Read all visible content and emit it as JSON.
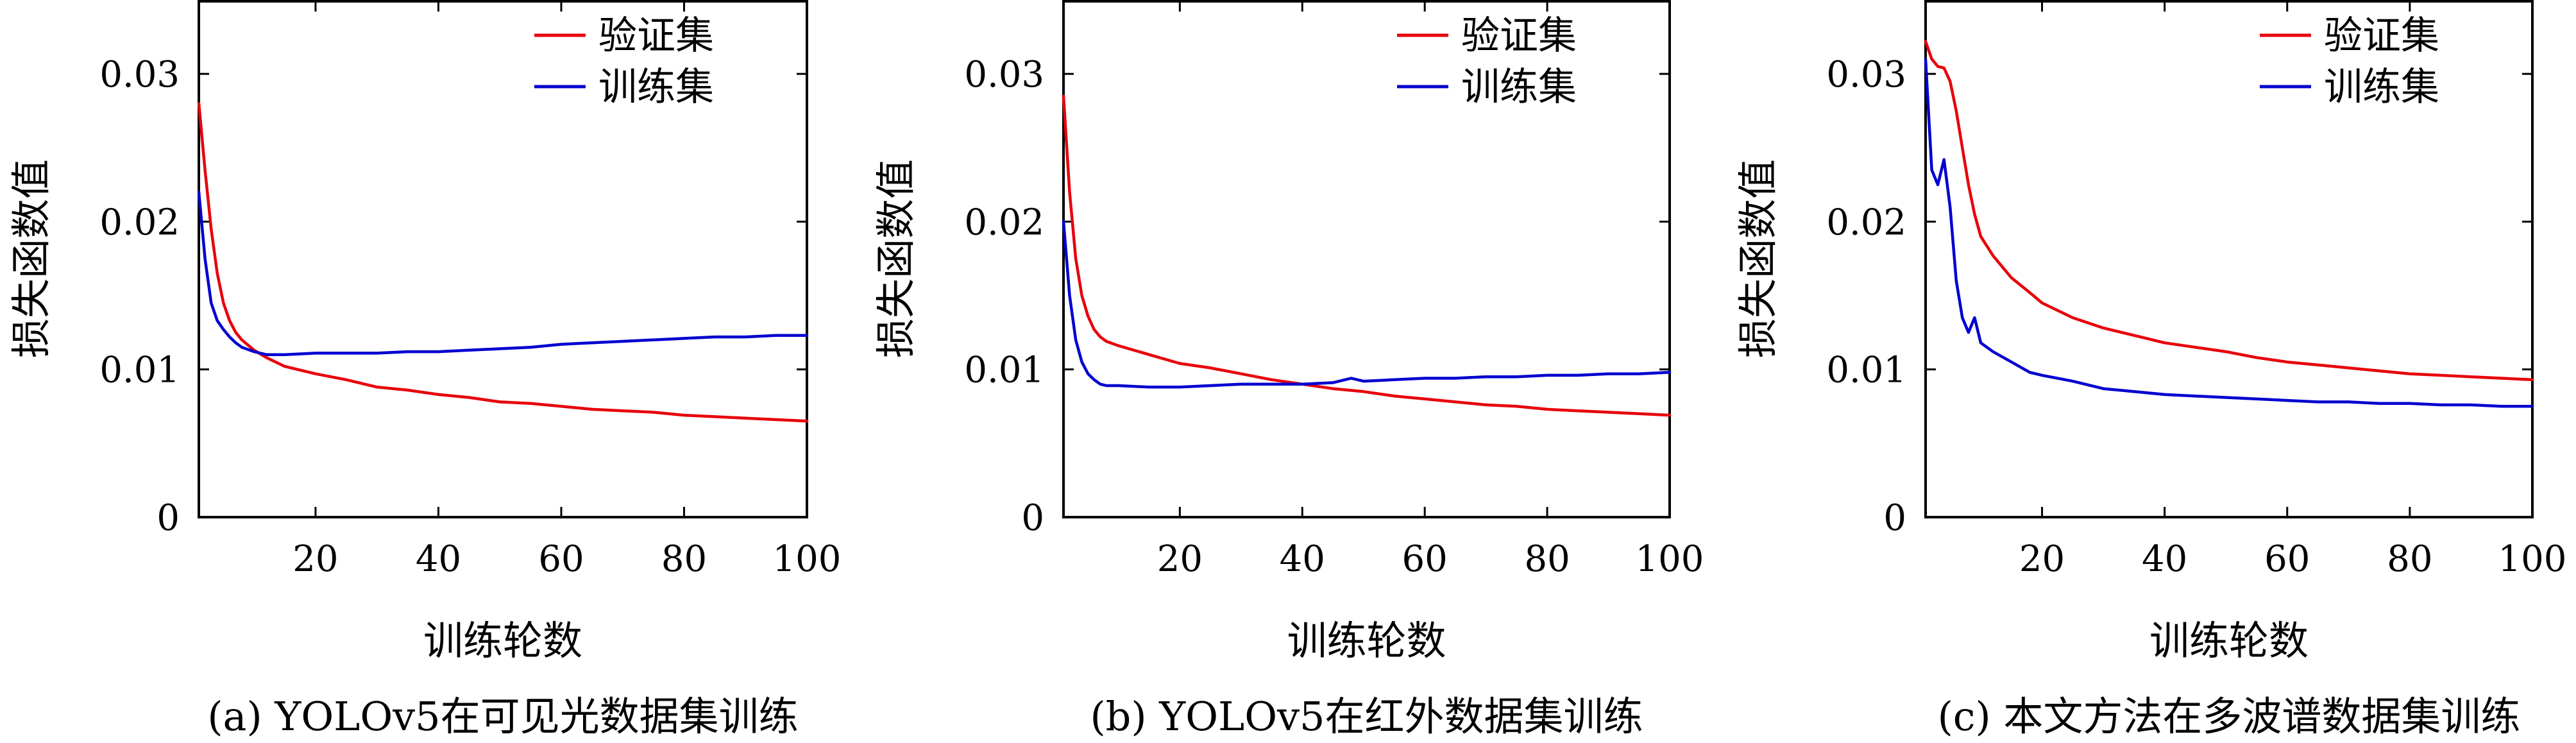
{
  "colors": {
    "validation": "#e8000b",
    "training": "#0000d0"
  },
  "chart_data": [
    {
      "type": "line",
      "caption": "(a) YOLOv5在可见光数据集训练",
      "xlabel": "训练轮数",
      "ylabel": "损失函数值",
      "xlim": [
        1,
        100
      ],
      "ylim": [
        0,
        0.035
      ],
      "xticks": [
        20,
        40,
        60,
        80,
        100
      ],
      "yticks": [
        0,
        0.01,
        0.02,
        0.03
      ],
      "xtick_labels": [
        "20",
        "40",
        "60",
        "80",
        "100"
      ],
      "ytick_labels": [
        "0",
        "0.01",
        "0.02",
        "0.03"
      ],
      "legend_position": "top-right",
      "series": [
        {
          "name": "验证集",
          "color": "#e8000b",
          "points": [
            [
              1,
              0.028
            ],
            [
              2,
              0.0235
            ],
            [
              3,
              0.0195
            ],
            [
              4,
              0.0165
            ],
            [
              5,
              0.0145
            ],
            [
              6,
              0.0133
            ],
            [
              7,
              0.0125
            ],
            [
              8,
              0.012
            ],
            [
              10,
              0.0113
            ],
            [
              12,
              0.0108
            ],
            [
              15,
              0.0102
            ],
            [
              20,
              0.0097
            ],
            [
              25,
              0.0093
            ],
            [
              30,
              0.0088
            ],
            [
              35,
              0.0086
            ],
            [
              40,
              0.0083
            ],
            [
              45,
              0.0081
            ],
            [
              50,
              0.0078
            ],
            [
              55,
              0.0077
            ],
            [
              60,
              0.0075
            ],
            [
              65,
              0.0073
            ],
            [
              70,
              0.0072
            ],
            [
              75,
              0.0071
            ],
            [
              80,
              0.0069
            ],
            [
              85,
              0.0068
            ],
            [
              90,
              0.0067
            ],
            [
              95,
              0.0066
            ],
            [
              100,
              0.0065
            ]
          ]
        },
        {
          "name": "训练集",
          "color": "#0000d0",
          "points": [
            [
              1,
              0.022
            ],
            [
              2,
              0.0175
            ],
            [
              3,
              0.0145
            ],
            [
              4,
              0.0133
            ],
            [
              5,
              0.0127
            ],
            [
              6,
              0.0122
            ],
            [
              7,
              0.0118
            ],
            [
              8,
              0.0115
            ],
            [
              10,
              0.0112
            ],
            [
              12,
              0.011
            ],
            [
              15,
              0.011
            ],
            [
              20,
              0.0111
            ],
            [
              25,
              0.0111
            ],
            [
              30,
              0.0111
            ],
            [
              35,
              0.0112
            ],
            [
              40,
              0.0112
            ],
            [
              45,
              0.0113
            ],
            [
              50,
              0.0114
            ],
            [
              55,
              0.0115
            ],
            [
              60,
              0.0117
            ],
            [
              65,
              0.0118
            ],
            [
              70,
              0.0119
            ],
            [
              75,
              0.012
            ],
            [
              80,
              0.0121
            ],
            [
              85,
              0.0122
            ],
            [
              90,
              0.0122
            ],
            [
              95,
              0.0123
            ],
            [
              100,
              0.0123
            ]
          ]
        }
      ]
    },
    {
      "type": "line",
      "caption": "(b) YOLOv5在红外数据集训练",
      "xlabel": "训练轮数",
      "ylabel": "损失函数值",
      "xlim": [
        1,
        100
      ],
      "ylim": [
        0,
        0.035
      ],
      "xticks": [
        20,
        40,
        60,
        80,
        100
      ],
      "yticks": [
        0,
        0.01,
        0.02,
        0.03
      ],
      "xtick_labels": [
        "20",
        "40",
        "60",
        "80",
        "100"
      ],
      "ytick_labels": [
        "0",
        "0.01",
        "0.02",
        "0.03"
      ],
      "legend_position": "top-right",
      "series": [
        {
          "name": "验证集",
          "color": "#e8000b",
          "points": [
            [
              1,
              0.0285
            ],
            [
              2,
              0.022
            ],
            [
              3,
              0.0175
            ],
            [
              4,
              0.015
            ],
            [
              5,
              0.0136
            ],
            [
              6,
              0.0127
            ],
            [
              7,
              0.0122
            ],
            [
              8,
              0.0119
            ],
            [
              10,
              0.0116
            ],
            [
              15,
              0.011
            ],
            [
              20,
              0.0104
            ],
            [
              25,
              0.0101
            ],
            [
              30,
              0.0097
            ],
            [
              35,
              0.0093
            ],
            [
              40,
              0.009
            ],
            [
              45,
              0.0087
            ],
            [
              50,
              0.0085
            ],
            [
              55,
              0.0082
            ],
            [
              60,
              0.008
            ],
            [
              65,
              0.0078
            ],
            [
              70,
              0.0076
            ],
            [
              75,
              0.0075
            ],
            [
              80,
              0.0073
            ],
            [
              85,
              0.0072
            ],
            [
              90,
              0.0071
            ],
            [
              95,
              0.007
            ],
            [
              100,
              0.0069
            ]
          ]
        },
        {
          "name": "训练集",
          "color": "#0000d0",
          "points": [
            [
              1,
              0.02
            ],
            [
              2,
              0.015
            ],
            [
              3,
              0.012
            ],
            [
              4,
              0.0105
            ],
            [
              5,
              0.0097
            ],
            [
              6,
              0.0093
            ],
            [
              7,
              0.009
            ],
            [
              8,
              0.0089
            ],
            [
              10,
              0.0089
            ],
            [
              15,
              0.0088
            ],
            [
              20,
              0.0088
            ],
            [
              25,
              0.0089
            ],
            [
              30,
              0.009
            ],
            [
              35,
              0.009
            ],
            [
              40,
              0.009
            ],
            [
              45,
              0.0091
            ],
            [
              48,
              0.0094
            ],
            [
              50,
              0.0092
            ],
            [
              55,
              0.0093
            ],
            [
              60,
              0.0094
            ],
            [
              65,
              0.0094
            ],
            [
              70,
              0.0095
            ],
            [
              75,
              0.0095
            ],
            [
              80,
              0.0096
            ],
            [
              85,
              0.0096
            ],
            [
              90,
              0.0097
            ],
            [
              95,
              0.0097
            ],
            [
              100,
              0.0098
            ]
          ]
        }
      ]
    },
    {
      "type": "line",
      "caption": "(c) 本文方法在多波谱数据集训练",
      "xlabel": "训练轮数",
      "ylabel": "损失函数值",
      "xlim": [
        1,
        100
      ],
      "ylim": [
        0,
        0.035
      ],
      "xticks": [
        20,
        40,
        60,
        80,
        100
      ],
      "yticks": [
        0,
        0.01,
        0.02,
        0.03
      ],
      "xtick_labels": [
        "20",
        "40",
        "60",
        "80",
        "100"
      ],
      "ytick_labels": [
        "0",
        "0.01",
        "0.02",
        "0.03"
      ],
      "legend_position": "top-right",
      "series": [
        {
          "name": "验证集",
          "color": "#e8000b",
          "points": [
            [
              1,
              0.0322
            ],
            [
              2,
              0.031
            ],
            [
              3,
              0.0305
            ],
            [
              4,
              0.0304
            ],
            [
              5,
              0.0295
            ],
            [
              6,
              0.0275
            ],
            [
              7,
              0.025
            ],
            [
              8,
              0.0225
            ],
            [
              9,
              0.0205
            ],
            [
              10,
              0.019
            ],
            [
              12,
              0.0177
            ],
            [
              15,
              0.0162
            ],
            [
              18,
              0.0152
            ],
            [
              20,
              0.0145
            ],
            [
              25,
              0.0135
            ],
            [
              30,
              0.0128
            ],
            [
              35,
              0.0123
            ],
            [
              40,
              0.0118
            ],
            [
              45,
              0.0115
            ],
            [
              50,
              0.0112
            ],
            [
              55,
              0.0108
            ],
            [
              60,
              0.0105
            ],
            [
              65,
              0.0103
            ],
            [
              70,
              0.0101
            ],
            [
              75,
              0.0099
            ],
            [
              80,
              0.0097
            ],
            [
              85,
              0.0096
            ],
            [
              90,
              0.0095
            ],
            [
              95,
              0.0094
            ],
            [
              100,
              0.0093
            ]
          ]
        },
        {
          "name": "训练集",
          "color": "#0000d0",
          "points": [
            [
              1,
              0.031
            ],
            [
              2,
              0.0235
            ],
            [
              3,
              0.0225
            ],
            [
              4,
              0.0242
            ],
            [
              5,
              0.021
            ],
            [
              6,
              0.016
            ],
            [
              7,
              0.0135
            ],
            [
              8,
              0.0125
            ],
            [
              9,
              0.0135
            ],
            [
              10,
              0.0118
            ],
            [
              12,
              0.0112
            ],
            [
              15,
              0.0105
            ],
            [
              18,
              0.0098
            ],
            [
              20,
              0.0096
            ],
            [
              25,
              0.0092
            ],
            [
              30,
              0.0087
            ],
            [
              35,
              0.0085
            ],
            [
              40,
              0.0083
            ],
            [
              45,
              0.0082
            ],
            [
              50,
              0.0081
            ],
            [
              55,
              0.008
            ],
            [
              60,
              0.0079
            ],
            [
              65,
              0.0078
            ],
            [
              70,
              0.0078
            ],
            [
              75,
              0.0077
            ],
            [
              80,
              0.0077
            ],
            [
              85,
              0.0076
            ],
            [
              90,
              0.0076
            ],
            [
              95,
              0.0075
            ],
            [
              100,
              0.0075
            ]
          ]
        }
      ]
    }
  ]
}
